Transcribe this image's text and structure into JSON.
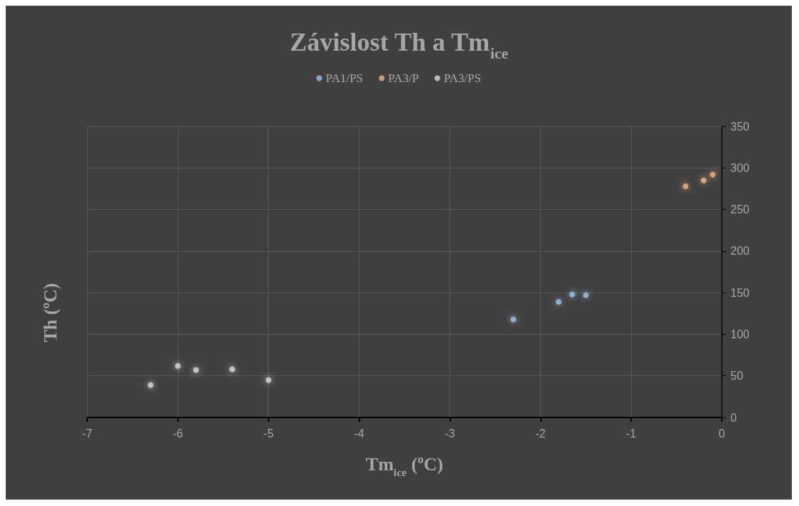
{
  "chart_data": {
    "type": "scatter",
    "title": "Závislost Th a Tm$_{ice}$",
    "xlabel": "Tm$_{ice}$ (ºC)",
    "ylabel": "Th (ºC)",
    "series": [
      {
        "name": "PA1/PS",
        "color": "#9dc3e6",
        "x": [
          -2.3,
          -1.8,
          -1.65,
          -1.5
        ],
        "values": [
          118,
          139,
          148,
          147
        ]
      },
      {
        "name": "PA3/P",
        "color": "#f4b183",
        "x": [
          -0.4,
          -0.2,
          -0.1
        ],
        "values": [
          278,
          285,
          292
        ]
      },
      {
        "name": "PA3/PS",
        "color": "#d9d9d9",
        "x": [
          -6.3,
          -6.0,
          -5.8,
          -5.4,
          -5.0
        ],
        "values": [
          39,
          62,
          57,
          58,
          45
        ]
      }
    ],
    "xlim": [
      -7,
      0
    ],
    "xticks": [
      -7,
      -6,
      -5,
      -4,
      -3,
      -2,
      -1,
      0
    ],
    "ylim": [
      0,
      350
    ],
    "yticks": [
      0,
      50,
      100,
      150,
      200,
      250,
      300,
      350
    ],
    "grid": true,
    "legend": "top",
    "marker": "circle"
  }
}
